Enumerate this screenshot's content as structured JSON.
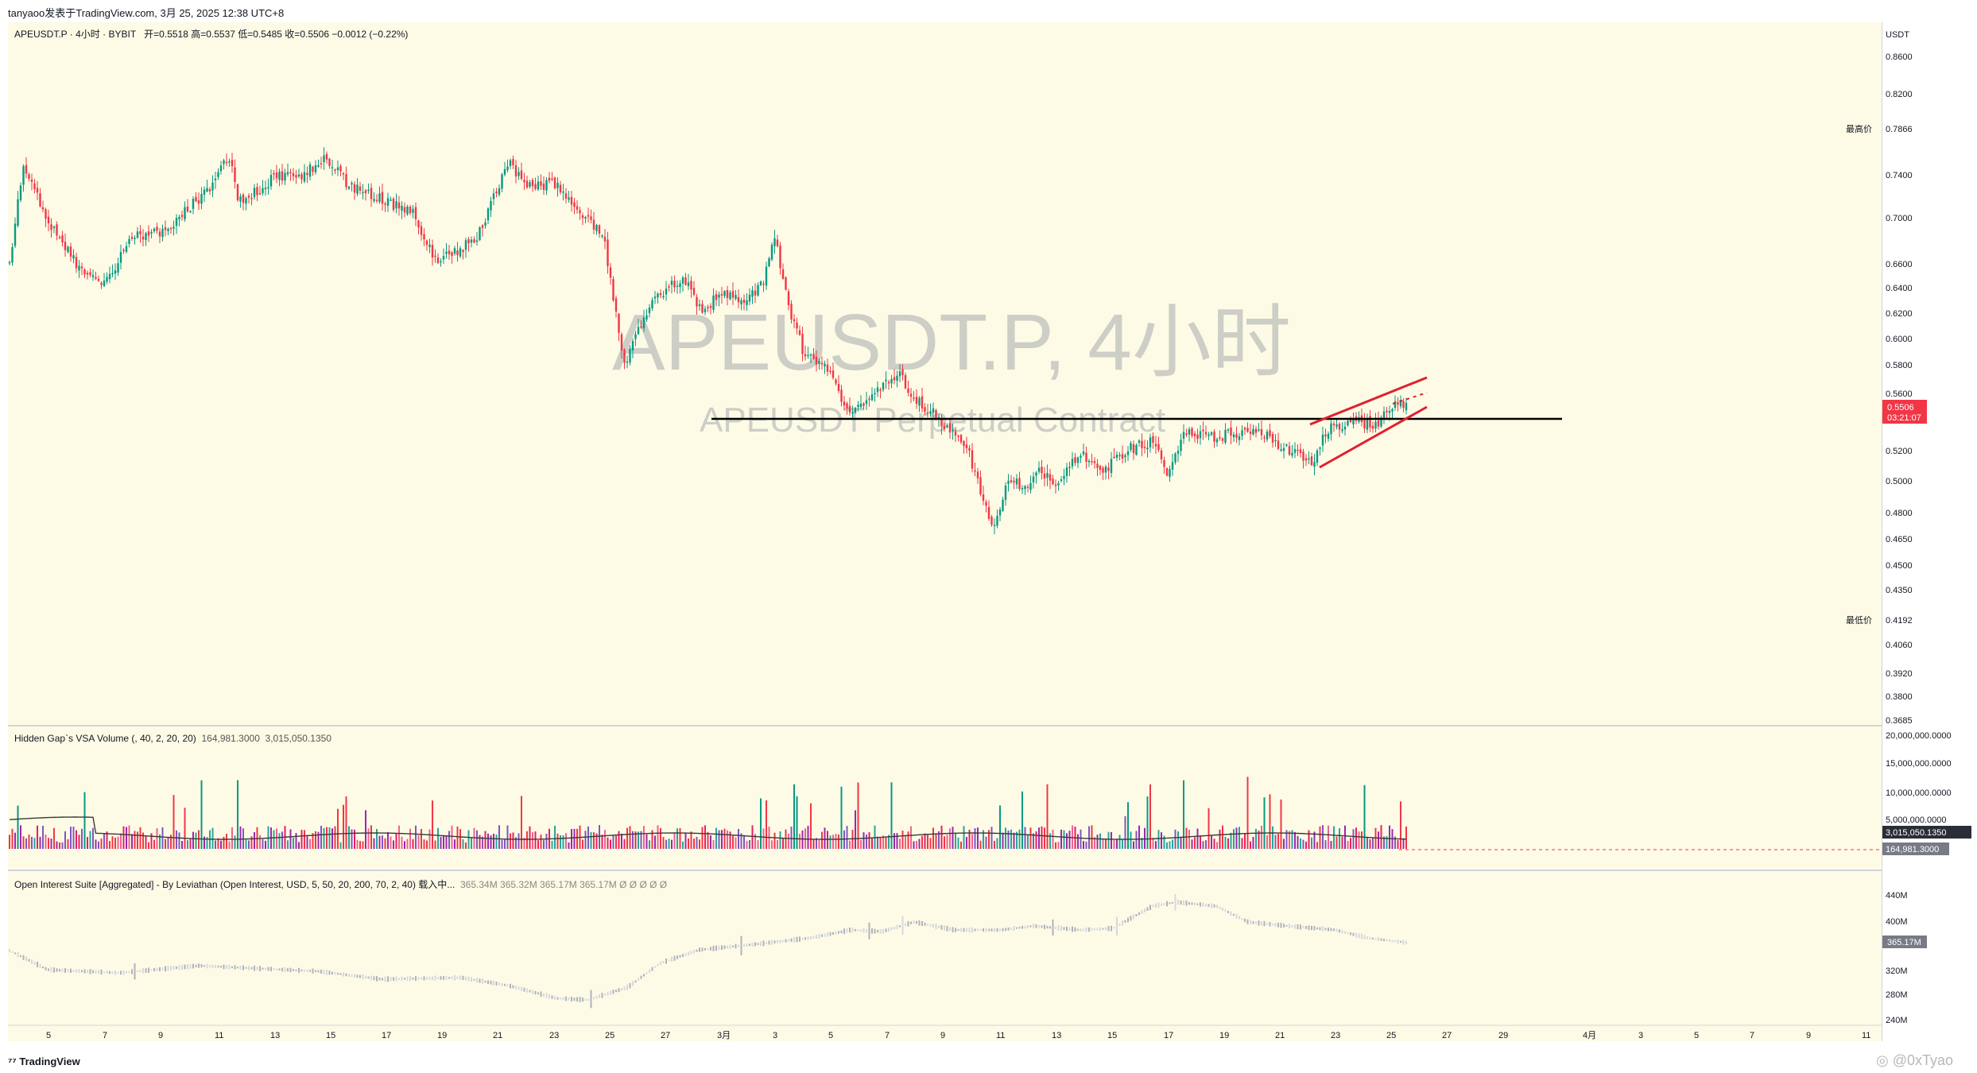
{
  "header": {
    "author_line": "tanyaoo发表于TradingView.com, 3月 25, 2025 12:38 UTC+8"
  },
  "legend": {
    "symbol": "APEUSDT.P · 4小时 · BYBIT",
    "ohlc": "开=0.5518  高=0.5537  低=0.5485  收=0.5506  −0.0012 (−0.22%)"
  },
  "watermark": {
    "title": "APEUSDT.P, 4小时",
    "subtitle": "APEUSDT Perpetual Contract"
  },
  "price_axis": {
    "currency": "USDT",
    "ticks": [
      "0.8600",
      "0.8200",
      "0.7400",
      "0.7000",
      "0.6600",
      "0.6400",
      "0.6200",
      "0.6000",
      "0.5800",
      "0.5600",
      "0.5200",
      "0.5000",
      "0.4800",
      "0.4650",
      "0.4500",
      "0.4350",
      "0.4060",
      "0.3920",
      "0.3800",
      "0.3685"
    ],
    "high_label": "最高价",
    "high_value": "0.7866",
    "low_label": "最低价",
    "low_value": "0.4192",
    "last_price": "0.5506",
    "countdown": "03:21:07"
  },
  "volume_panel": {
    "title": "Hidden Gap`s VSA Volume (, 40, 2, 20, 20)",
    "val1": "164,981.3000",
    "val2": "3,015,050.1350",
    "ticks": [
      "20,000,000.0000",
      "15,000,000.0000",
      "10,000,000.0000",
      "5,000,000.0000"
    ],
    "badge_top": "3,015,050.1350",
    "badge_bottom": "164,981.3000"
  },
  "oi_panel": {
    "title": "Open Interest Suite [Aggregated] - By Leviathan (Open Interest, USD, 5, 50, 20, 200, 70, 2, 40) 载入中...",
    "values": "365.34M  365.32M  365.17M  365.17M  Ø  Ø  Ø  Ø  Ø",
    "ticks": [
      "440M",
      "400M",
      "320M",
      "280M",
      "240M"
    ],
    "badge": "365.17M"
  },
  "time_axis": {
    "ticks": [
      "5",
      "7",
      "9",
      "11",
      "13",
      "15",
      "17",
      "19",
      "21",
      "23",
      "25",
      "27",
      "3月",
      "3",
      "5",
      "7",
      "9",
      "11",
      "13",
      "15",
      "17",
      "19",
      "21",
      "23",
      "25",
      "27",
      "29",
      "4月",
      "3",
      "5",
      "7",
      "9",
      "11"
    ]
  },
  "footer": {
    "brand": "TradingView",
    "watermark_handle": "@0xTyao"
  },
  "colors": {
    "up": "#089981",
    "down": "#f23645",
    "chart_bg": "#fdfbe6",
    "channel": "#e0202e"
  }
}
